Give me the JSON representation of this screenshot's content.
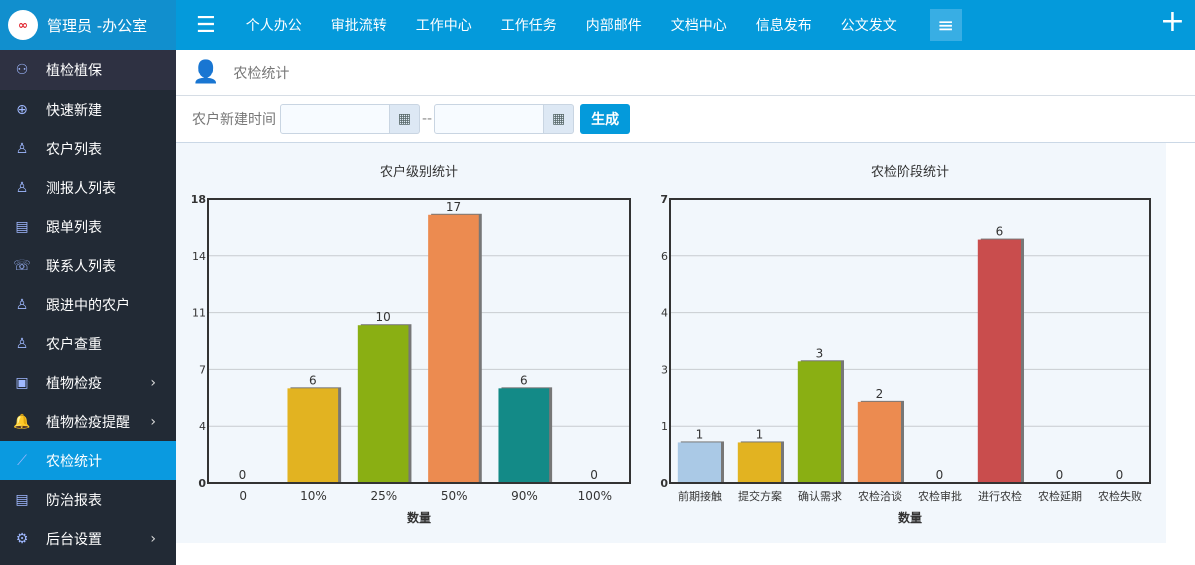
{
  "brand": {
    "title": "管理员 -办公室",
    "logo_text": "∞"
  },
  "sidebar": {
    "items": [
      {
        "label": "植检植保",
        "icon": "users-icon"
      },
      {
        "label": "快速新建",
        "icon": "plus-circle-icon"
      },
      {
        "label": "农户列表",
        "icon": "user-icon"
      },
      {
        "label": "测报人列表",
        "icon": "user-add-icon"
      },
      {
        "label": "跟单列表",
        "icon": "clipboard-icon"
      },
      {
        "label": "联系人列表",
        "icon": "contact-icon"
      },
      {
        "label": "跟进中的农户",
        "icon": "user-plus-icon"
      },
      {
        "label": "农户查重",
        "icon": "user-search-icon"
      },
      {
        "label": "植物检疫",
        "icon": "badge-icon",
        "arrow": "›"
      },
      {
        "label": "植物检疫提醒",
        "icon": "bell-icon",
        "arrow": "›"
      },
      {
        "label": "农检统计",
        "icon": "line-chart-icon",
        "active": true
      },
      {
        "label": "防治报表",
        "icon": "document-icon"
      },
      {
        "label": "后台设置",
        "icon": "gear-icon",
        "arrow": "›"
      }
    ]
  },
  "topnav": [
    "个人办公",
    "审批流转",
    "工作中心",
    "工作任务",
    "内部邮件",
    "文档中心",
    "信息发布",
    "公文发文"
  ],
  "page": {
    "title": "农检统计"
  },
  "filter": {
    "label": "农户新建时间",
    "start": "",
    "end": "",
    "separator": "--",
    "button": "生成"
  },
  "colors": {
    "accent": "#049adb",
    "sidebar": "#222a35"
  },
  "chart_data": [
    {
      "type": "bar",
      "title": "农户级别统计",
      "xlabel": "数量",
      "ylabel": "",
      "categories": [
        "0",
        "10%",
        "25%",
        "50%",
        "90%",
        "100%"
      ],
      "values": [
        0,
        6,
        10,
        17,
        6,
        0
      ],
      "ylim": [
        0,
        18
      ],
      "yticks": [
        "0",
        "4",
        "7",
        "11",
        "14",
        "18"
      ],
      "colors": [
        "#aac9e6",
        "#e2b321",
        "#8aaf13",
        "#ec8b50",
        "#138a87",
        "#c94d4d"
      ],
      "grid": true
    },
    {
      "type": "bar",
      "title": "农检阶段统计",
      "xlabel": "数量",
      "ylabel": "",
      "categories": [
        "前期接触",
        "提交方案",
        "确认需求",
        "农检洽谈",
        "农检审批",
        "进行农检",
        "农检延期",
        "农检失败"
      ],
      "values": [
        1,
        1,
        3,
        2,
        0,
        6,
        0,
        0
      ],
      "ylim": [
        0,
        7
      ],
      "yticks": [
        "0",
        "1",
        "3",
        "4",
        "6",
        "7"
      ],
      "colors": [
        "#aac9e6",
        "#e2b321",
        "#8aaf13",
        "#ec8b50",
        "#138a87",
        "#c94d4d",
        "#aac9e6",
        "#e2b321"
      ],
      "grid": true
    }
  ]
}
